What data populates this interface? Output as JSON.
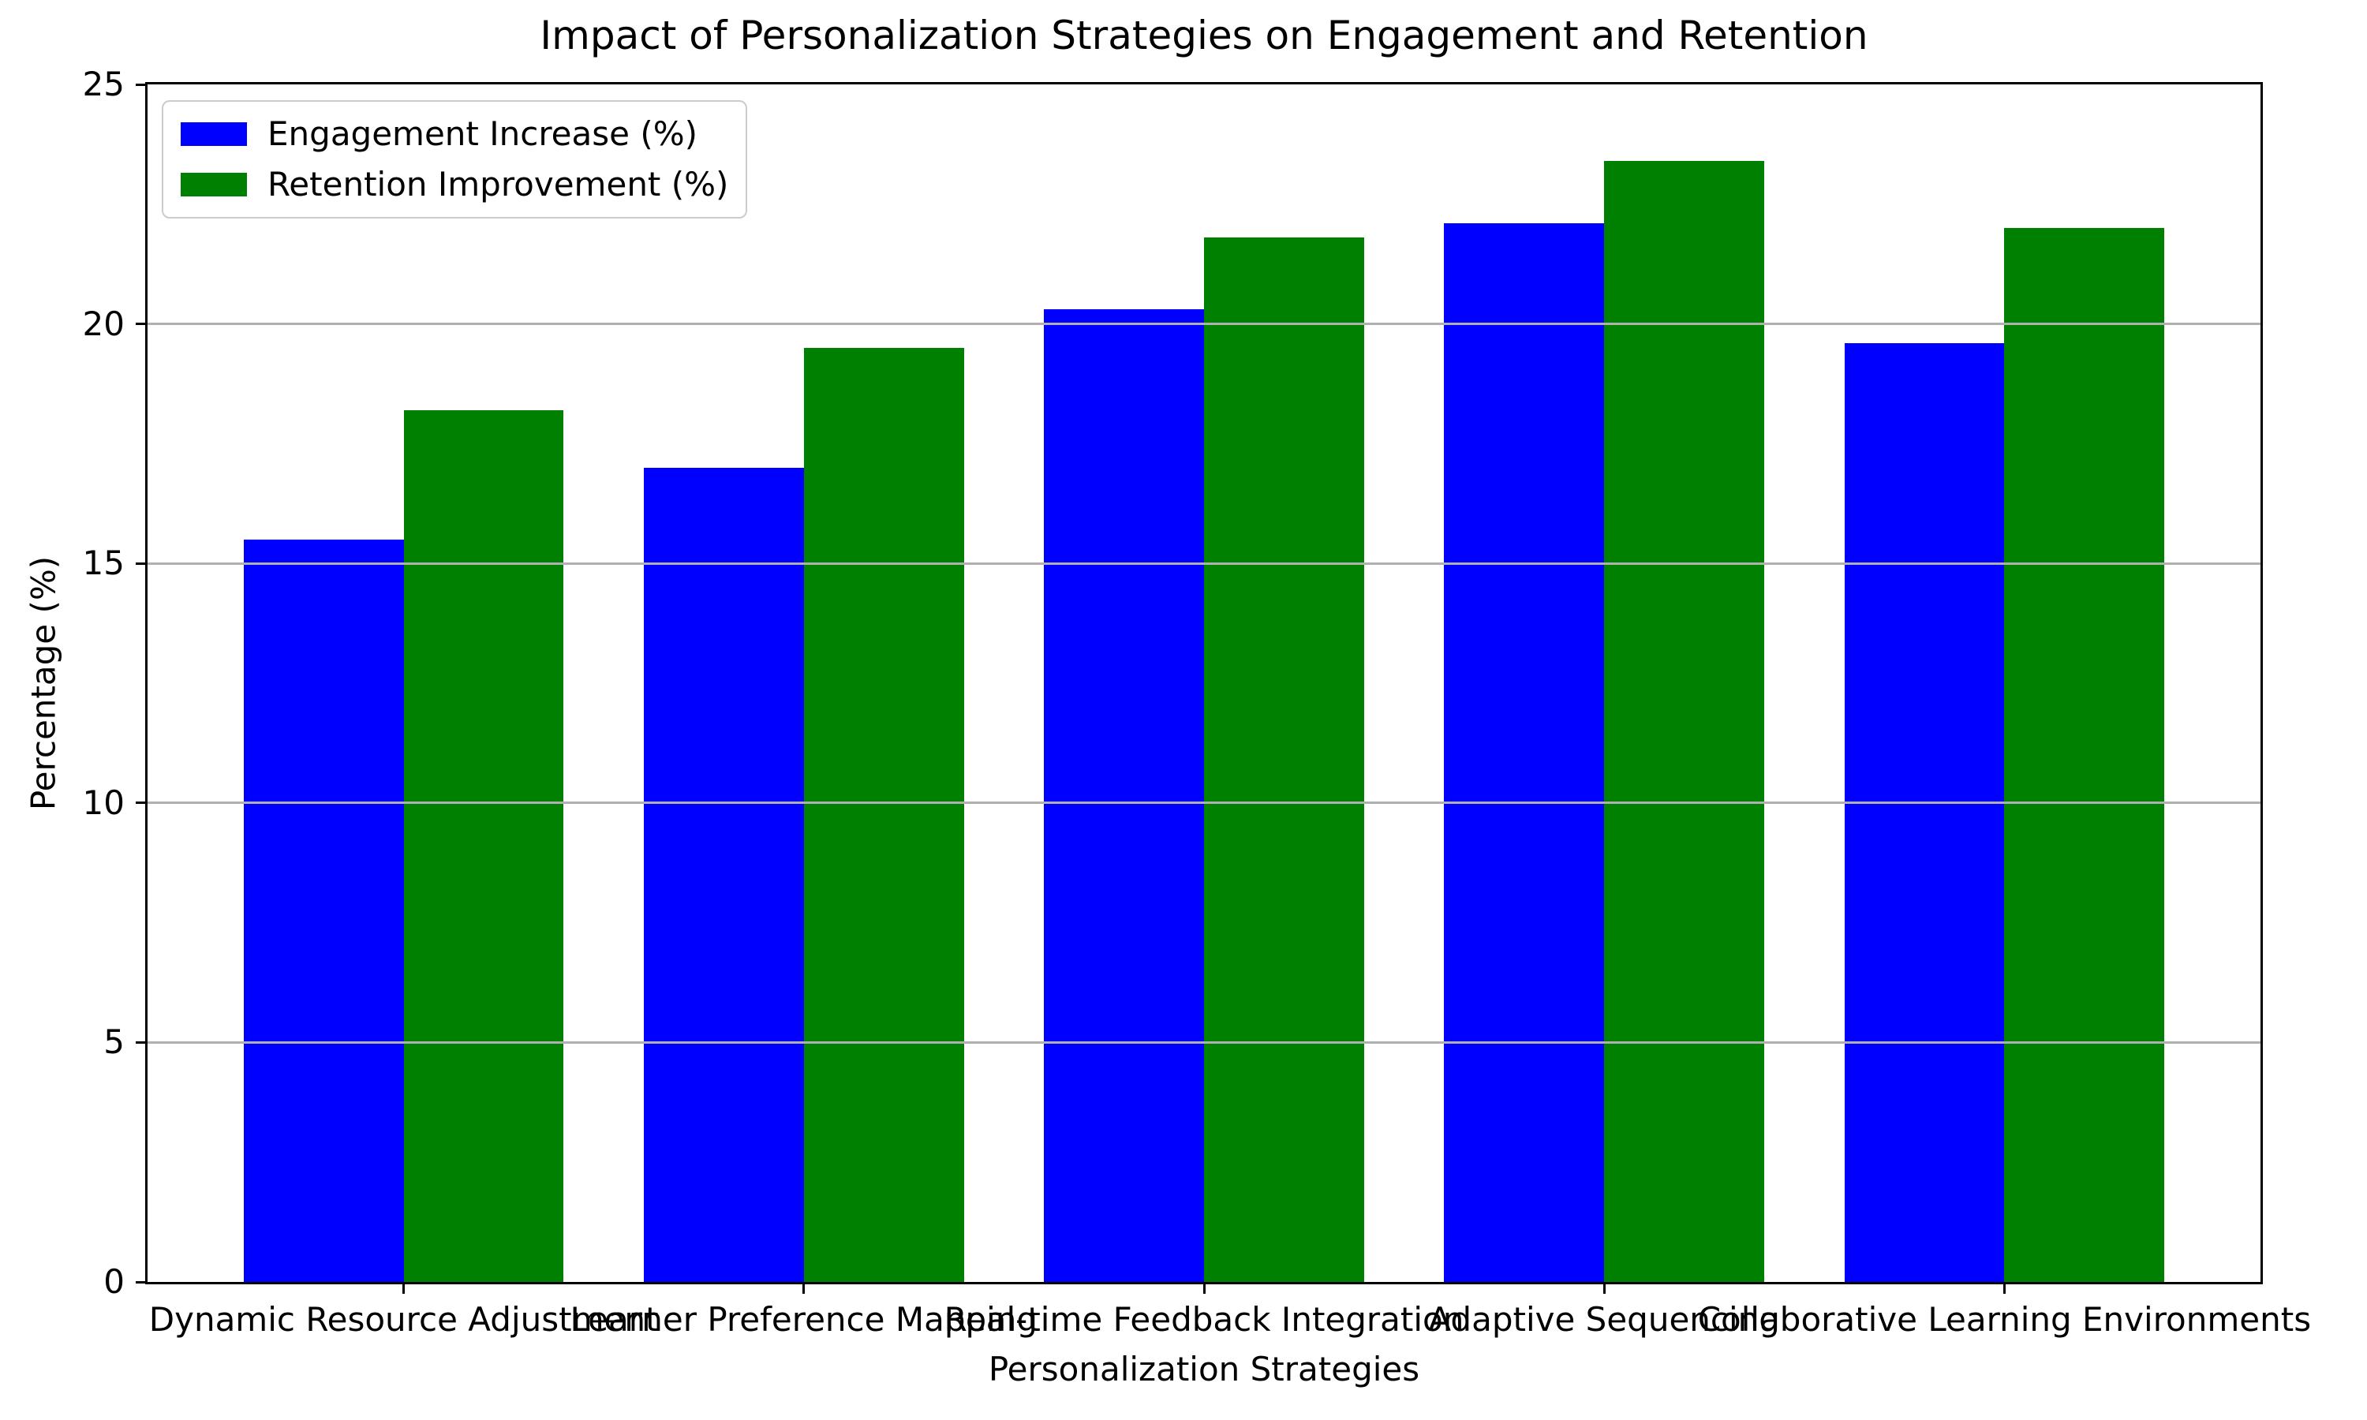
{
  "chart_data": {
    "type": "bar",
    "title": "Impact of Personalization Strategies on Engagement and Retention",
    "xlabel": "Personalization Strategies",
    "ylabel": "Percentage (%)",
    "categories": [
      "Dynamic Resource Adjustment",
      "Learner Preference Mapping",
      "Real-time Feedback Integration",
      "Adaptive Sequencing",
      "Collaborative Learning Environments"
    ],
    "series": [
      {
        "name": "Engagement Increase (%)",
        "color": "#0000ff",
        "values": [
          15.5,
          17.0,
          20.3,
          22.1,
          19.6
        ]
      },
      {
        "name": "Retention Improvement (%)",
        "color": "#008000",
        "values": [
          18.2,
          19.5,
          21.8,
          23.4,
          22.0
        ]
      }
    ],
    "ylim": [
      0,
      25
    ],
    "yticks": [
      0,
      5,
      10,
      15,
      20,
      25
    ],
    "grid": true,
    "grid_color": "#b0b0b0",
    "spine_color": "#000000",
    "legend_position": "upper-left",
    "background": "#ffffff",
    "text_color": "#000000"
  }
}
